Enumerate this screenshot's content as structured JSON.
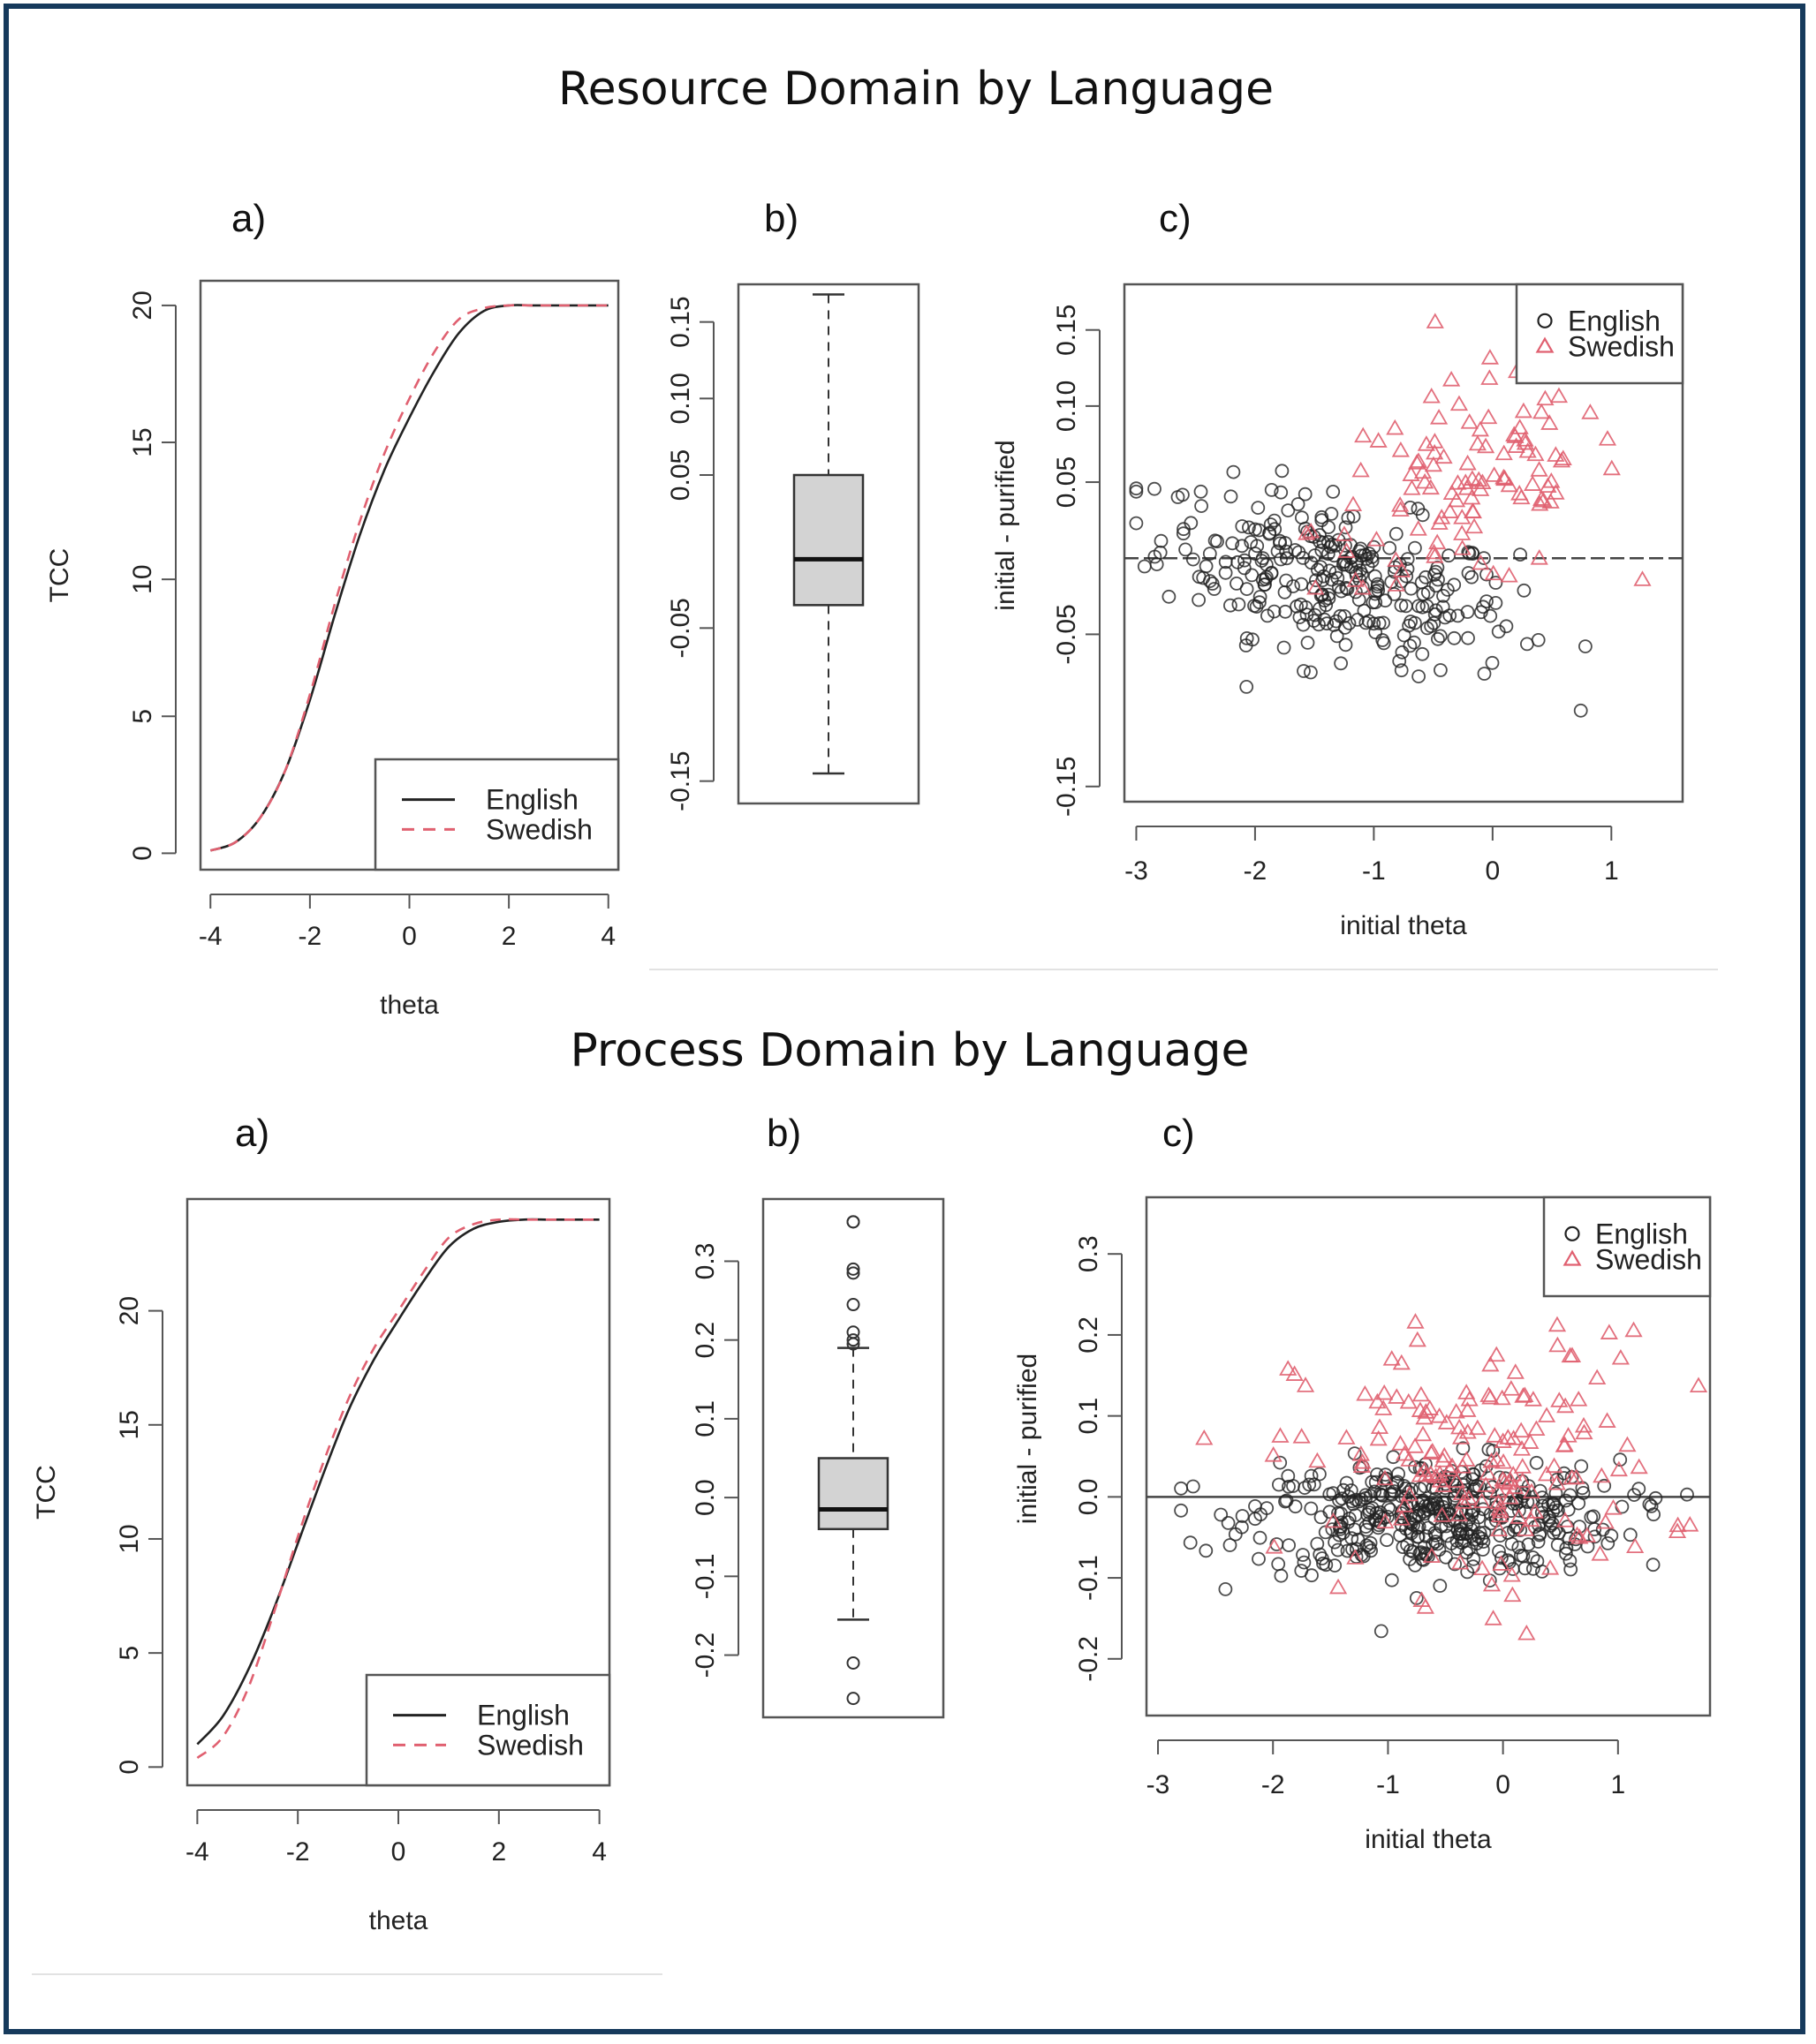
{
  "sections": [
    {
      "title": "Resource Domain by Language",
      "panels": {
        "a": "a)",
        "b": "b)",
        "c": "c)"
      }
    },
    {
      "title": "Process Domain by Language",
      "panels": {
        "a": "a)",
        "b": "b)",
        "c": "c)"
      }
    }
  ],
  "colors": {
    "english": "#222222",
    "swedish": "#e06070",
    "frame": "#163a5c",
    "box_fill": "#d3d3d3"
  },
  "chart_data": [
    {
      "id": "resource-tcc",
      "type": "line",
      "xlabel": "theta",
      "ylabel": "TCC",
      "xlim": [
        -4,
        4
      ],
      "ylim": [
        0,
        20
      ],
      "xticks": [
        "-4",
        "-2",
        "0",
        "2",
        "4"
      ],
      "yticks": [
        "0",
        "5",
        "10",
        "15",
        "20"
      ],
      "legend": "bottom-right",
      "series": [
        {
          "name": "English",
          "x": [
            -4,
            -3.5,
            -3,
            -2.5,
            -2,
            -1.5,
            -1,
            -0.5,
            0,
            0.5,
            1,
            1.5,
            2,
            2.5,
            3,
            3.5,
            4
          ],
          "y": [
            0.1,
            0.4,
            1.3,
            3.0,
            5.6,
            8.7,
            11.6,
            14.0,
            15.9,
            17.6,
            19.0,
            19.8,
            20.0,
            20.0,
            20.0,
            20.0,
            20.0
          ]
        },
        {
          "name": "Swedish",
          "x": [
            -4,
            -3.5,
            -3,
            -2.5,
            -2,
            -1.5,
            -1,
            -0.5,
            0,
            0.5,
            1,
            1.5,
            2,
            2.5,
            3,
            3.5,
            4
          ],
          "y": [
            0.1,
            0.4,
            1.3,
            3.0,
            5.8,
            9.1,
            12.1,
            14.6,
            16.6,
            18.3,
            19.5,
            19.9,
            20.0,
            20.0,
            20.0,
            20.0,
            20.0
          ]
        }
      ]
    },
    {
      "id": "resource-box",
      "type": "box",
      "ylim": [
        -0.16,
        0.17
      ],
      "yticks": [
        "-0.15",
        "-0.05",
        "0.05",
        "0.10",
        "0.15"
      ],
      "yticks_values": [
        -0.15,
        -0.05,
        0.05,
        0.1,
        0.15
      ],
      "whisker_low": -0.145,
      "q1": -0.035,
      "median": -0.005,
      "q3": 0.05,
      "whisker_high": 0.168,
      "outliers": []
    },
    {
      "id": "resource-scatter",
      "type": "scatter",
      "xlabel": "initial theta",
      "ylabel": "initial - purified",
      "xlim": [
        -3.1,
        1.6
      ],
      "ylim": [
        -0.16,
        0.18
      ],
      "xticks": [
        "-3",
        "-2",
        "-1",
        "0",
        "1"
      ],
      "yticks": [
        "-0.15",
        "-0.05",
        "0.05",
        "0.10",
        "0.15"
      ],
      "yticks_values": [
        -0.15,
        -0.05,
        0.05,
        0.1,
        0.15
      ],
      "hline": 0,
      "legend": "top-right",
      "series": [
        {
          "name": "English",
          "marker": "circle",
          "x_range": [
            -3.0,
            1.4
          ],
          "y_range": [
            -0.145,
            0.08
          ],
          "count": 300,
          "trend": "decreasing"
        },
        {
          "name": "Swedish",
          "marker": "triangle",
          "x_range": [
            -2.3,
            1.4
          ],
          "y_range": [
            -0.02,
            0.17
          ],
          "count": 110,
          "trend": "increasing"
        }
      ]
    },
    {
      "id": "process-tcc",
      "type": "line",
      "xlabel": "theta",
      "ylabel": "TCC",
      "xlim": [
        -4,
        4
      ],
      "ylim": [
        0,
        24
      ],
      "xticks": [
        "-4",
        "-2",
        "0",
        "2",
        "4"
      ],
      "yticks": [
        "0",
        "5",
        "10",
        "15",
        "20"
      ],
      "legend": "bottom-right",
      "series": [
        {
          "name": "English",
          "x": [
            -4,
            -3.5,
            -3,
            -2.5,
            -2,
            -1.5,
            -1,
            -0.5,
            0,
            0.5,
            1,
            1.5,
            2,
            2.5,
            3,
            3.5,
            4
          ],
          "y": [
            1.0,
            2.2,
            4.2,
            6.8,
            9.8,
            12.8,
            15.6,
            17.8,
            19.6,
            21.3,
            22.8,
            23.6,
            23.9,
            24.0,
            24.0,
            24.0,
            24.0
          ]
        },
        {
          "name": "Swedish",
          "x": [
            -4,
            -3.5,
            -3,
            -2.5,
            -2,
            -1.5,
            -1,
            -0.5,
            0,
            0.5,
            1,
            1.5,
            2,
            2.5,
            3,
            3.5,
            4
          ],
          "y": [
            0.4,
            1.3,
            3.4,
            6.6,
            10.1,
            13.3,
            16.1,
            18.3,
            20.0,
            21.7,
            23.2,
            23.8,
            24.0,
            24.0,
            24.0,
            24.0,
            24.0
          ]
        }
      ]
    },
    {
      "id": "process-box",
      "type": "box",
      "ylim": [
        -0.27,
        0.37
      ],
      "yticks": [
        "-0.2",
        "-0.1",
        "0.0",
        "0.1",
        "0.2",
        "0.3"
      ],
      "yticks_values": [
        -0.2,
        -0.1,
        0.0,
        0.1,
        0.2,
        0.3
      ],
      "whisker_low": -0.155,
      "q1": -0.04,
      "median": -0.015,
      "q3": 0.05,
      "whisker_high": 0.19,
      "outliers": [
        0.35,
        0.35,
        0.29,
        0.285,
        0.245,
        0.21,
        0.2,
        0.195,
        -0.21,
        -0.255
      ]
    },
    {
      "id": "process-scatter",
      "type": "scatter",
      "xlabel": "initial theta",
      "ylabel": "initial - purified",
      "xlim": [
        -3.1,
        1.8
      ],
      "ylim": [
        -0.27,
        0.37
      ],
      "xticks": [
        "-3",
        "-2",
        "-1",
        "0",
        "1"
      ],
      "yticks": [
        "-0.2",
        "-0.1",
        "0.0",
        "0.1",
        "0.2",
        "0.3"
      ],
      "yticks_values": [
        -0.2,
        -0.1,
        0.0,
        0.1,
        0.2,
        0.3
      ],
      "hline": 0,
      "legend": "top-right",
      "series": [
        {
          "name": "English",
          "marker": "circle",
          "x_range": [
            -2.8,
            1.6
          ],
          "y_range": [
            -0.21,
            0.06
          ],
          "count": 420,
          "trend": "flat"
        },
        {
          "name": "Swedish",
          "marker": "triangle",
          "x_range": [
            -2.9,
            1.7
          ],
          "y_range": [
            -0.255,
            0.35
          ],
          "count": 170,
          "trend": "spread"
        }
      ]
    }
  ]
}
